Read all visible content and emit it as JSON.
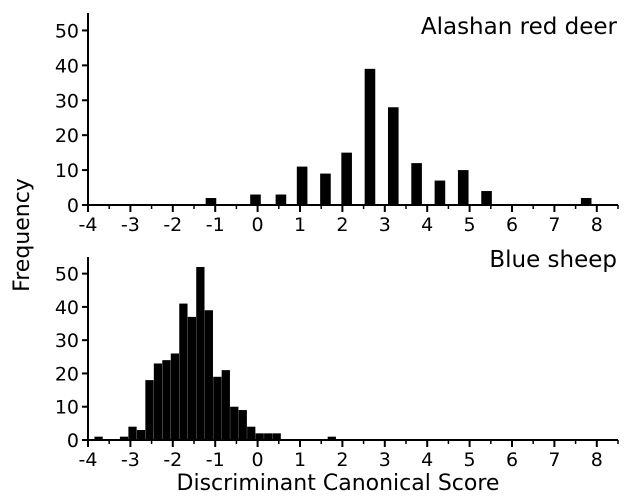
{
  "chart_data": [
    {
      "type": "bar",
      "title": "Alashan red deer",
      "xlabel": "",
      "ylabel": "Frequency",
      "xlim": [
        -4,
        8.5
      ],
      "ylim": [
        0,
        55
      ],
      "xticks": [
        "-4",
        "-3",
        "-2",
        "-1",
        "0",
        "1",
        "2",
        "3",
        "4",
        "5",
        "6",
        "7",
        "8"
      ],
      "yticks": [
        "0",
        "10",
        "20",
        "30",
        "40",
        "50"
      ],
      "bin_width": 0.25,
      "x": [
        -1.1,
        -0.05,
        0.55,
        1.05,
        1.6,
        2.1,
        2.65,
        3.2,
        3.75,
        4.3,
        4.85,
        5.4,
        7.75
      ],
      "values": [
        2,
        3,
        3,
        11,
        9,
        15,
        39,
        28,
        12,
        7,
        10,
        4,
        2
      ],
      "grid": false,
      "color": "#000000"
    },
    {
      "type": "bar",
      "title": "Blue sheep",
      "xlabel": "Discriminant Canonical Score",
      "ylabel": "Frequency",
      "xlim": [
        -4,
        8.5
      ],
      "ylim": [
        0,
        55
      ],
      "xticks": [
        "-4",
        "-3",
        "-2",
        "-1",
        "0",
        "1",
        "2",
        "3",
        "4",
        "5",
        "6",
        "7",
        "8"
      ],
      "yticks": [
        "0",
        "10",
        "20",
        "30",
        "40",
        "50"
      ],
      "bin_width": 0.195,
      "x": [
        -3.75,
        -3.15,
        -2.95,
        -2.75,
        -2.55,
        -2.35,
        -2.15,
        -1.95,
        -1.75,
        -1.55,
        -1.35,
        -1.15,
        -0.95,
        -0.75,
        -0.55,
        -0.35,
        -0.15,
        0.05,
        0.25,
        0.45,
        1.75
      ],
      "values": [
        1,
        1,
        4,
        3,
        18,
        23,
        24,
        26,
        41,
        37,
        52,
        39,
        19,
        21,
        10,
        9,
        4,
        2,
        2,
        2,
        1
      ],
      "grid": false,
      "color": "#000000"
    }
  ]
}
